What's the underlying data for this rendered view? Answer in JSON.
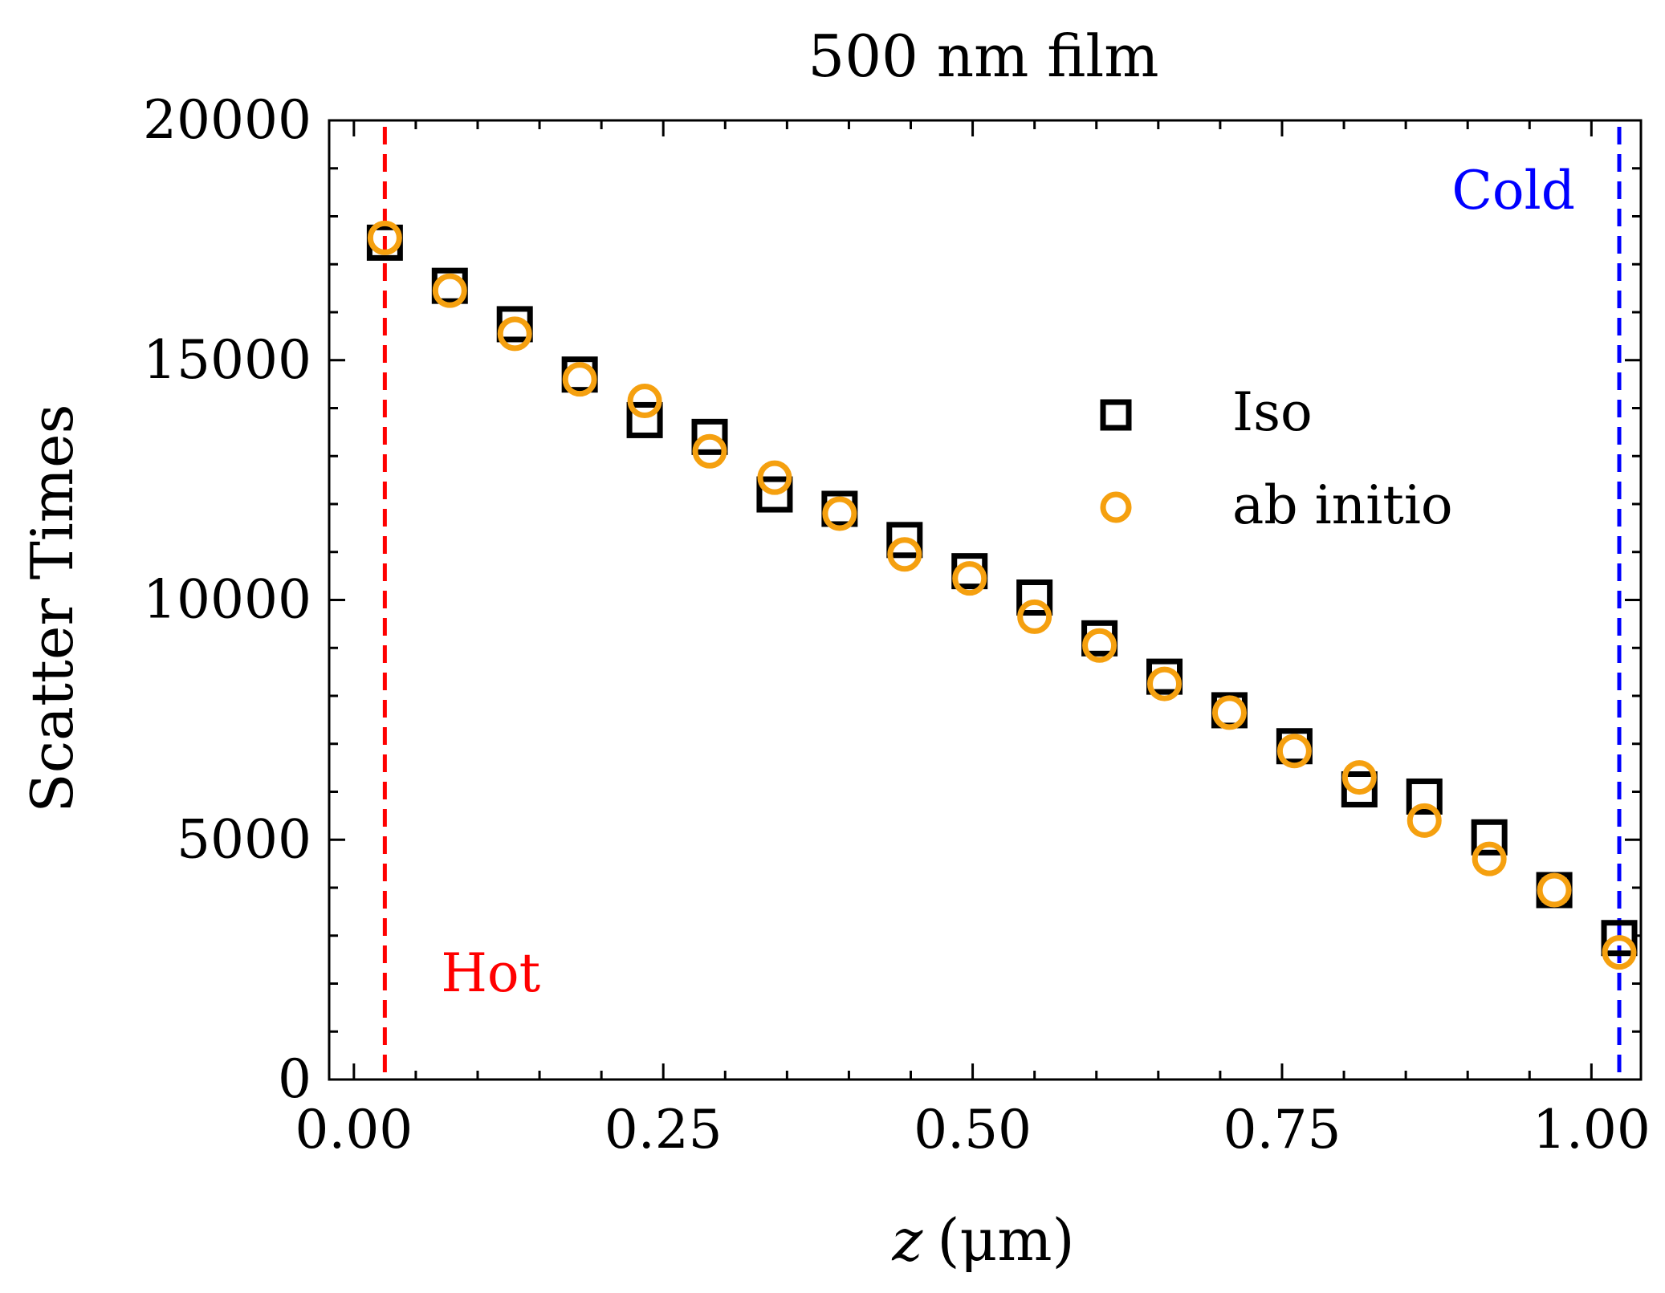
{
  "chart_data": {
    "type": "scatter",
    "title": "500 nm film",
    "xlabel_var": "z",
    "xlabel_unit": "(μm)",
    "ylabel": "Scatter Times",
    "xlim": [
      -0.02,
      1.04
    ],
    "ylim": [
      0,
      20000
    ],
    "x_ticks": [
      "0.00",
      "0.25",
      "0.50",
      "0.75",
      "1.00"
    ],
    "y_ticks": [
      "0",
      "5000",
      "10000",
      "15000",
      "20000"
    ],
    "x_tick_values": [
      0,
      0.25,
      0.5,
      0.75,
      1.0
    ],
    "y_tick_values": [
      0,
      5000,
      10000,
      15000,
      20000
    ],
    "grid": false,
    "legend_position": "center-right",
    "x": [
      0.025,
      0.0775,
      0.13,
      0.1825,
      0.235,
      0.2875,
      0.34,
      0.3925,
      0.445,
      0.4975,
      0.55,
      0.6025,
      0.655,
      0.7075,
      0.76,
      0.8125,
      0.865,
      0.9175,
      0.97,
      1.0225
    ],
    "series": [
      {
        "name": "Iso",
        "marker": "square",
        "color": "#000000",
        "values": [
          17450,
          16550,
          15750,
          14700,
          13750,
          13400,
          12200,
          11900,
          11250,
          10600,
          10050,
          9200,
          8400,
          7700,
          6950,
          6050,
          5900,
          5050,
          3950,
          2950
        ]
      },
      {
        "name": "ab initio",
        "marker": "circle",
        "color": "#f5a00f",
        "values": [
          17550,
          16450,
          15550,
          14600,
          14150,
          13100,
          12550,
          11800,
          10950,
          10450,
          9650,
          9050,
          8250,
          7650,
          6850,
          6300,
          5400,
          4600,
          3950,
          2650
        ]
      }
    ],
    "vlines": [
      {
        "x": 0.025,
        "color": "#ff0000",
        "label": "Hot",
        "label_position": "bottom"
      },
      {
        "x": 1.0225,
        "color": "#0000ff",
        "label": "Cold",
        "label_position": "top"
      }
    ]
  }
}
